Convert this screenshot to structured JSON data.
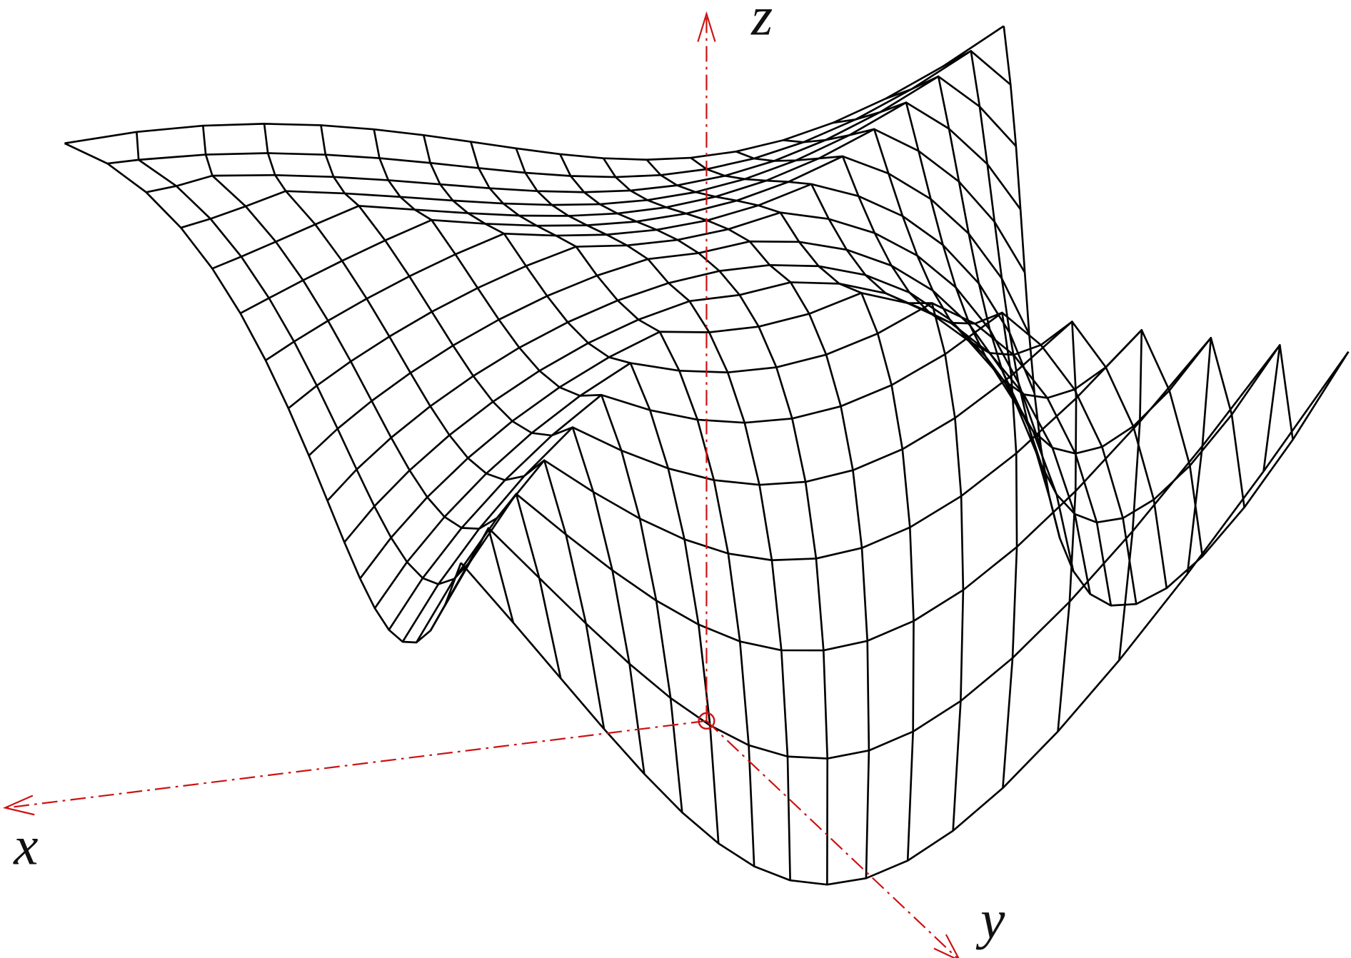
{
  "axes": {
    "x": "x",
    "y": "y",
    "z": "z"
  }
}
